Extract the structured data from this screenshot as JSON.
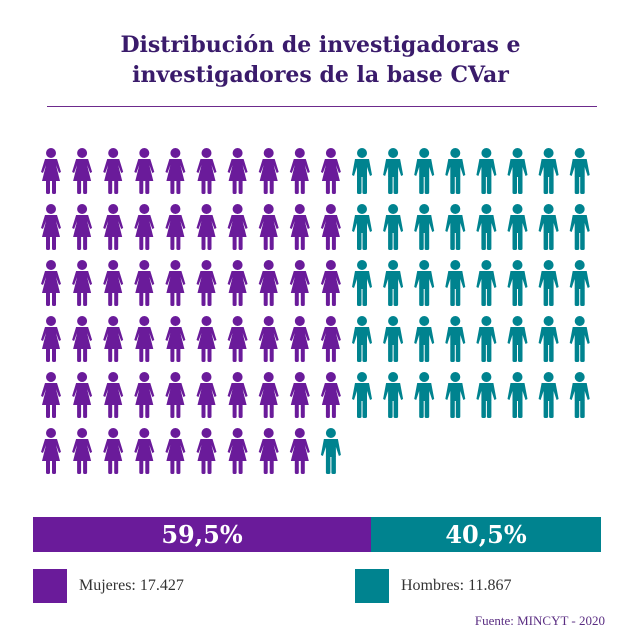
{
  "title_lines": [
    "Distribución de investigadoras e",
    "investigadores de la base CVar"
  ],
  "chart_data": {
    "type": "pictograph",
    "title": "Distribución de investigadoras e investigadores de la base CVar",
    "icons_total": 100,
    "series": [
      {
        "name": "Mujeres",
        "icon_count": 59,
        "percent": 59.5,
        "percent_label": "59,5%",
        "value": 17427,
        "legend_label": "Mujeres: 17.427",
        "color": "#6a1b9a"
      },
      {
        "name": "Hombres",
        "icon_count": 41,
        "percent": 40.5,
        "percent_label": "40,5%",
        "value": 11867,
        "legend_label": "Hombres: 11.867",
        "color": "#00838f"
      }
    ]
  },
  "source": "Fuente: MINCYT - 2020",
  "colors": {
    "title": "#3a1b6b",
    "rule": "#6c2a8c"
  }
}
